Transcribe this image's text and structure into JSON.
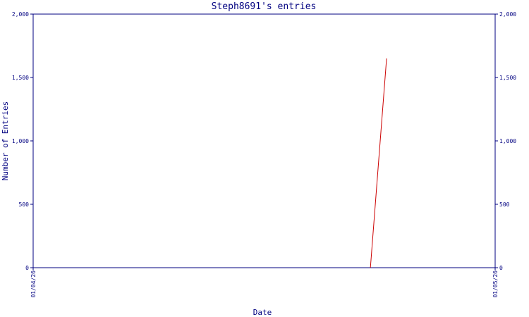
{
  "chart_data": {
    "type": "line",
    "title": "Steph8691's entries",
    "xlabel": "Date",
    "ylabel": "Number of Entries",
    "x": [
      0.73,
      0.765
    ],
    "series": [
      {
        "name": "entries",
        "color": "#cc0000",
        "values": [
          0,
          1650
        ]
      }
    ],
    "xlim": [
      0,
      1
    ],
    "xticks": [
      {
        "value": 0,
        "label": "01/04/26"
      },
      {
        "value": 1,
        "label": "01/05/26"
      }
    ],
    "ylim": [
      0,
      2000
    ],
    "yticks": [
      0,
      500,
      {
        "value": 1000,
        "label": "1,000"
      },
      {
        "value": 1500,
        "label": "1,500"
      },
      {
        "value": 2000,
        "label": "2,000"
      }
    ],
    "axis_color": "#000080",
    "grid": false
  }
}
